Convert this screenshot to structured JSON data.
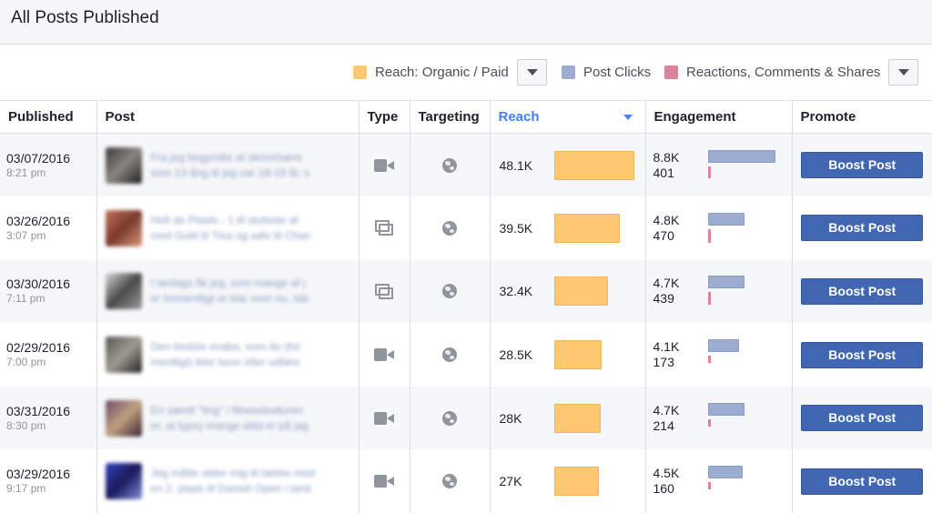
{
  "header": {
    "title": "All Posts Published"
  },
  "legend": {
    "items": [
      {
        "label": "Reach: Organic / Paid",
        "color": "#ffc873"
      },
      {
        "label": "Post Clicks",
        "color": "#9cadd1"
      },
      {
        "label": "Reactions, Comments & Shares",
        "color": "#d9849b"
      }
    ]
  },
  "columns": [
    "Published",
    "Post",
    "Type",
    "Targeting",
    "Reach",
    "Engagement",
    "Promote"
  ],
  "sorted_column": "Reach",
  "boost_label": "Boost Post",
  "rows": [
    {
      "date": "03/07/2016",
      "time": "8:21 pm",
      "post_type": "video",
      "reach": "48.1K",
      "reach_value": 48.1,
      "clicks": "8.8K",
      "clicks_value": 8.8,
      "reactions": "401",
      "reactions_value": 401
    },
    {
      "date": "03/26/2016",
      "time": "3:07 pm",
      "post_type": "album",
      "reach": "39.5K",
      "reach_value": 39.5,
      "clicks": "4.8K",
      "clicks_value": 4.8,
      "reactions": "470",
      "reactions_value": 470
    },
    {
      "date": "03/30/2016",
      "time": "7:11 pm",
      "post_type": "album",
      "reach": "32.4K",
      "reach_value": 32.4,
      "clicks": "4.7K",
      "clicks_value": 4.7,
      "reactions": "439",
      "reactions_value": 439
    },
    {
      "date": "02/29/2016",
      "time": "7:00 pm",
      "post_type": "video",
      "reach": "28.5K",
      "reach_value": 28.5,
      "clicks": "4.1K",
      "clicks_value": 4.1,
      "reactions": "173",
      "reactions_value": 173
    },
    {
      "date": "03/31/2016",
      "time": "8:30 pm",
      "post_type": "video",
      "reach": "28K",
      "reach_value": 28,
      "clicks": "4.7K",
      "clicks_value": 4.7,
      "reactions": "214",
      "reactions_value": 214
    },
    {
      "date": "03/29/2016",
      "time": "9:17 pm",
      "post_type": "video",
      "reach": "27K",
      "reach_value": 27,
      "clicks": "4.5K",
      "clicks_value": 4.5,
      "reactions": "160",
      "reactions_value": 160
    }
  ]
}
